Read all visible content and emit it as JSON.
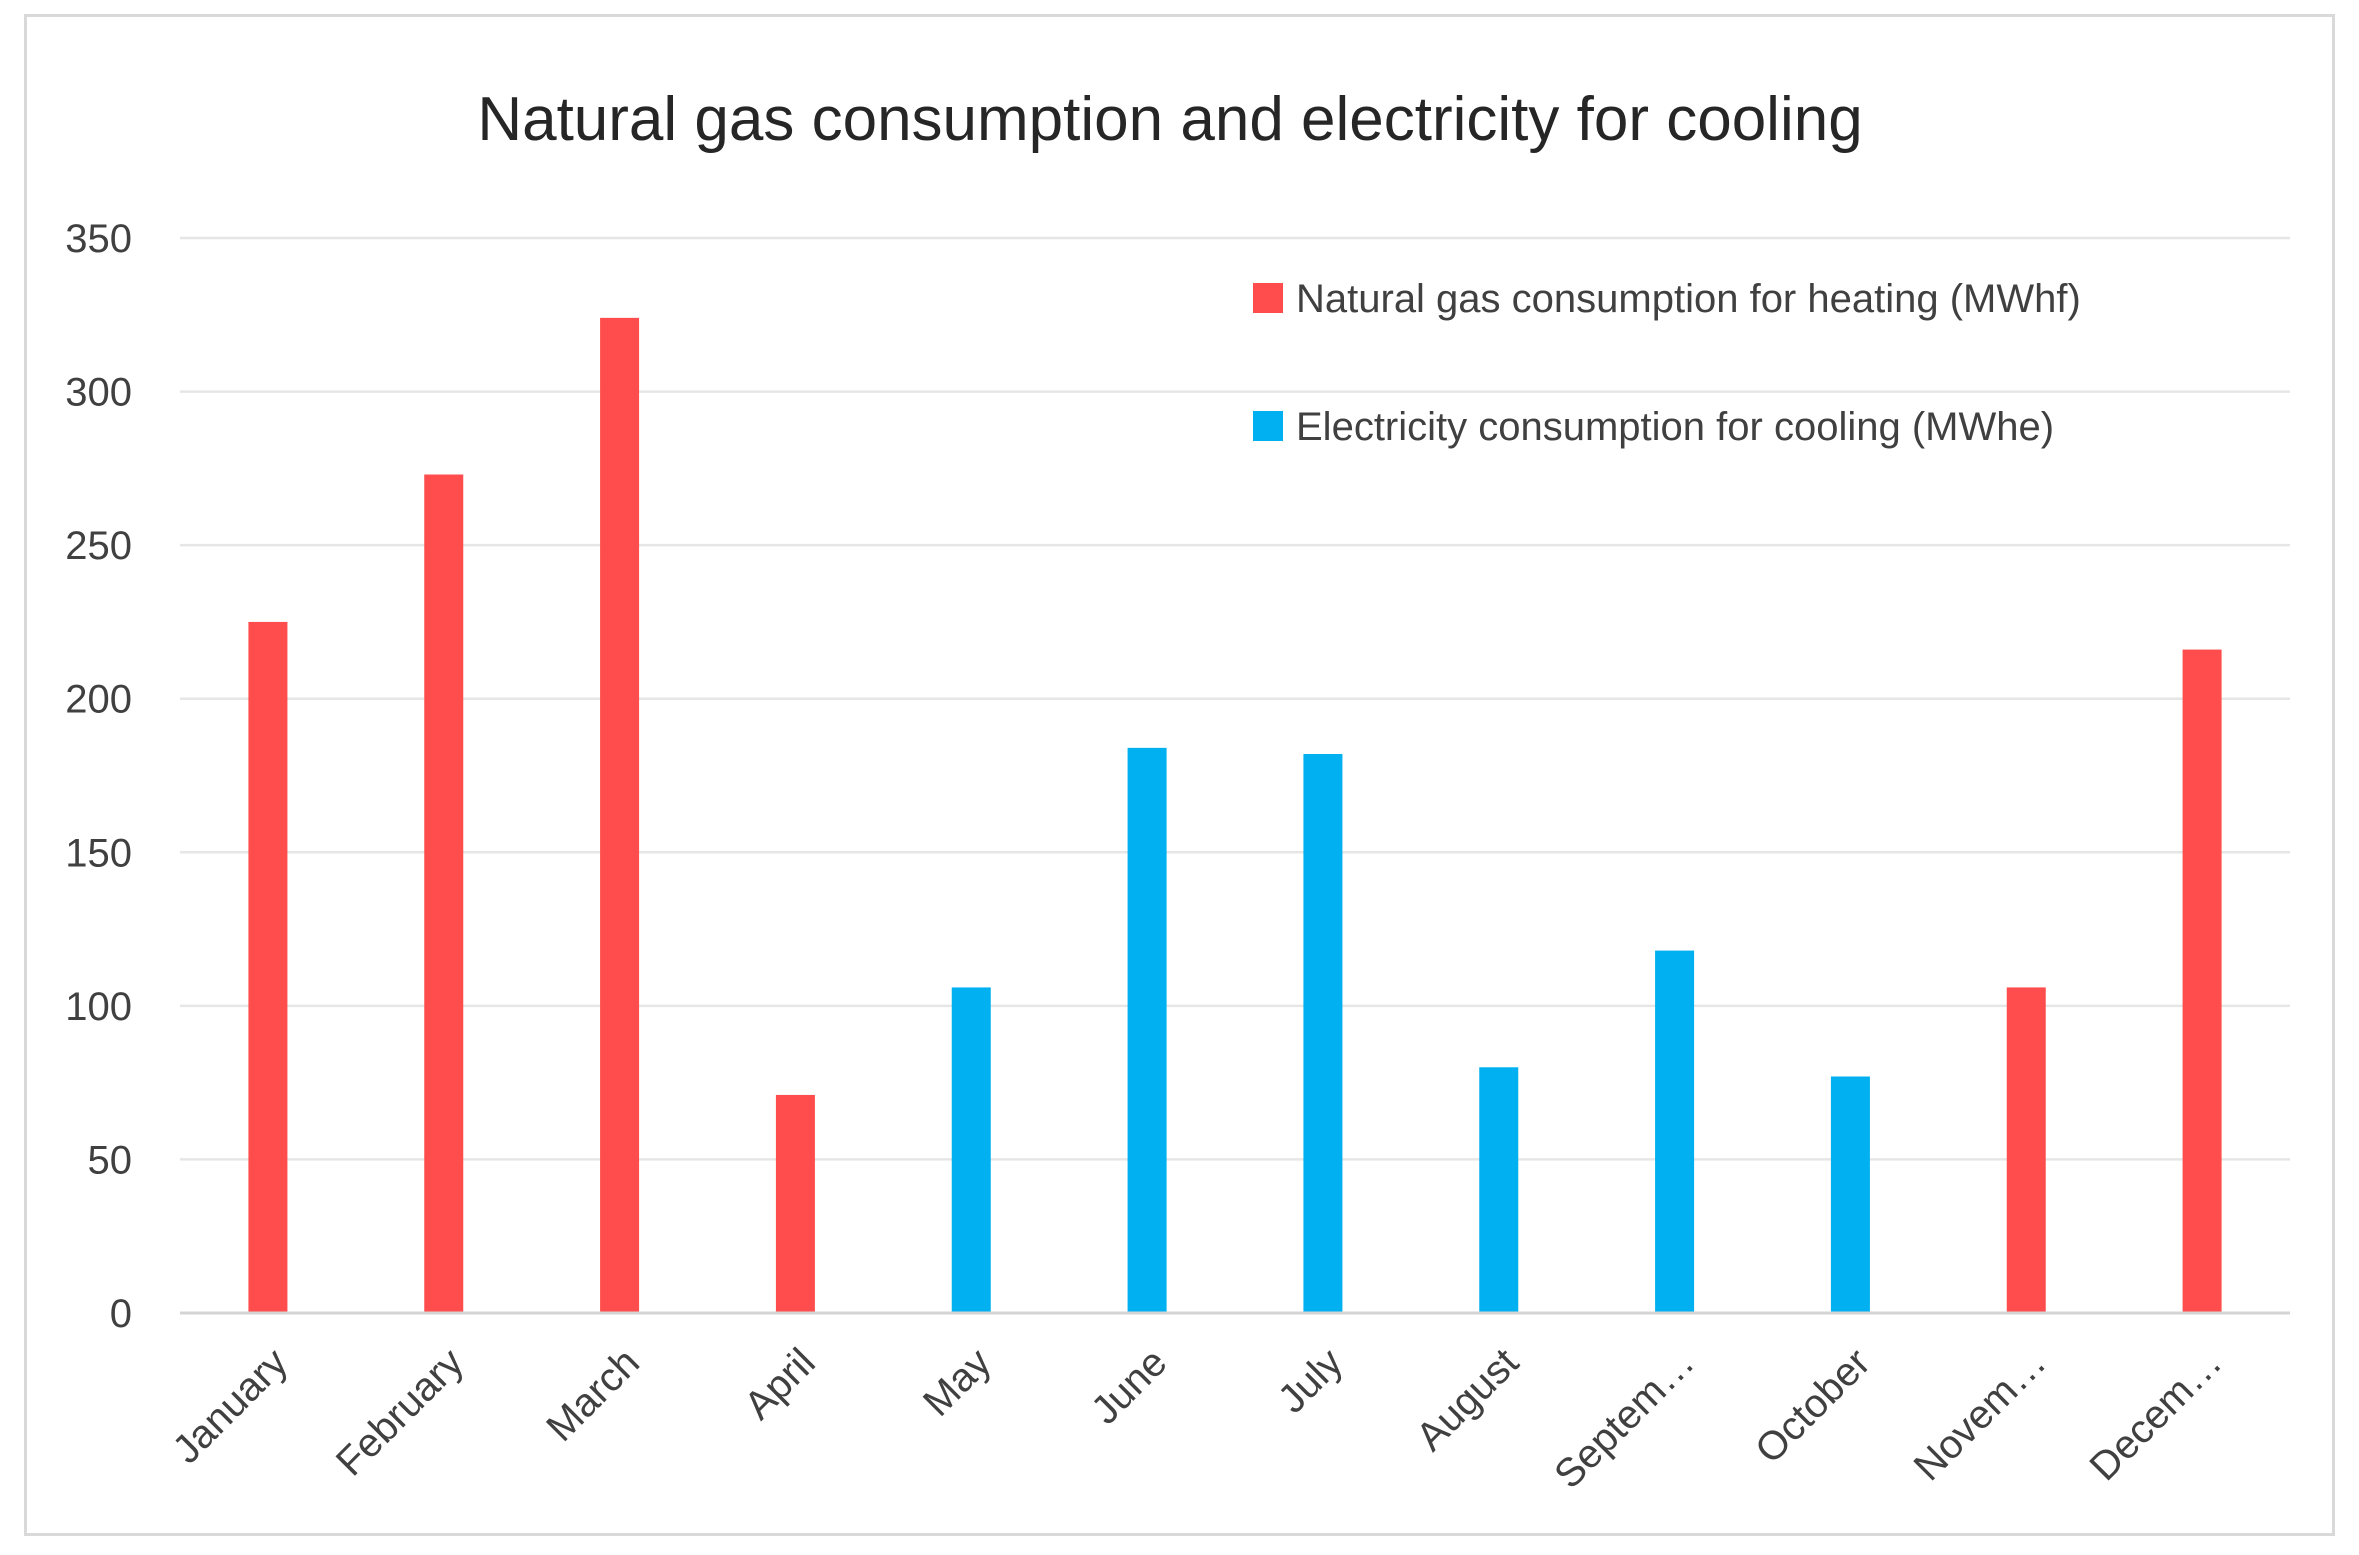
{
  "chart_data": {
    "type": "bar",
    "title": "Natural gas consumption and electricity for cooling",
    "xlabel": "",
    "ylabel": "",
    "categories": [
      "January",
      "February",
      "March",
      "April",
      "May",
      "June",
      "July",
      "August",
      "Septem…",
      "October",
      "Novem…",
      "Decem…"
    ],
    "ylim": [
      0,
      350
    ],
    "yticks": [
      0,
      50,
      100,
      150,
      200,
      250,
      300,
      350
    ],
    "grid": true,
    "legend_position": "top-right",
    "series": [
      {
        "name": "Natural gas consumption for heating (MWhf)",
        "color": "#ff4d4d",
        "values": [
          225,
          273,
          324,
          71,
          null,
          null,
          null,
          null,
          null,
          null,
          106,
          216
        ]
      },
      {
        "name": "Electricity consumption for cooling (MWhe)",
        "color": "#00b0f0",
        "values": [
          null,
          null,
          null,
          null,
          106,
          184,
          182,
          80,
          118,
          77,
          null,
          null
        ]
      }
    ]
  }
}
